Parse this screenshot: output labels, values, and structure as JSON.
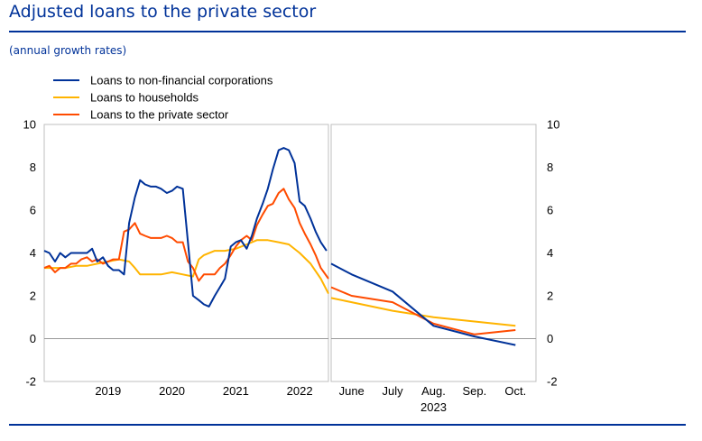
{
  "header": {
    "title": "Adjusted loans to the private sector",
    "subtitle": "(annual growth rates)"
  },
  "colors": {
    "nfc": "#003299",
    "households": "#ffb400",
    "private": "#ff4b00",
    "frame": "#bfbfbf",
    "zero": "#999999"
  },
  "chart_data": {
    "type": "line",
    "legend": [
      {
        "name": "Loans to non-financial corporations",
        "color": "#003299"
      },
      {
        "name": "Loans to households",
        "color": "#ffb400"
      },
      {
        "name": "Loans to the private sector",
        "color": "#ff4b00"
      }
    ],
    "legend_position": "top-left",
    "ylim": [
      -2,
      10
    ],
    "yticks": [
      "10",
      "8",
      "6",
      "4",
      "2",
      "0",
      "-2"
    ],
    "grid": false,
    "left_panel": {
      "x_tick_labels": [
        "2019",
        "2020",
        "2021",
        "2022"
      ],
      "x_range": [
        2018.5,
        2022.95
      ],
      "series": [
        {
          "name": "Loans to non-financial corporations",
          "color": "#003299",
          "x": [
            2018.5,
            2018.58,
            2018.67,
            2018.75,
            2018.83,
            2018.92,
            2019.0,
            2019.08,
            2019.17,
            2019.25,
            2019.33,
            2019.42,
            2019.5,
            2019.58,
            2019.67,
            2019.75,
            2019.83,
            2019.92,
            2020.0,
            2020.08,
            2020.17,
            2020.25,
            2020.33,
            2020.42,
            2020.5,
            2020.58,
            2020.67,
            2020.75,
            2020.83,
            2020.92,
            2021.0,
            2021.08,
            2021.17,
            2021.25,
            2021.33,
            2021.42,
            2021.5,
            2021.58,
            2021.67,
            2021.75,
            2021.83,
            2021.92,
            2022.0,
            2022.08,
            2022.17,
            2022.25,
            2022.33,
            2022.42,
            2022.5,
            2022.58,
            2022.67,
            2022.75,
            2022.83,
            2022.92
          ],
          "values": [
            4.1,
            4.0,
            3.6,
            4.0,
            3.8,
            4.0,
            4.0,
            4.0,
            4.0,
            4.2,
            3.6,
            3.8,
            3.4,
            3.2,
            3.2,
            3.0,
            5.4,
            6.6,
            7.4,
            7.2,
            7.1,
            7.1,
            7.0,
            6.8,
            6.9,
            7.1,
            7.0,
            4.5,
            2.0,
            1.8,
            1.6,
            1.5,
            2.0,
            2.4,
            2.8,
            4.3,
            4.5,
            4.6,
            4.2,
            4.8,
            5.6,
            6.3,
            7.0,
            7.9,
            8.8,
            8.9,
            8.8,
            8.2,
            6.4,
            6.2,
            5.6,
            5.0,
            4.5,
            4.1
          ]
        },
        {
          "name": "Loans to households",
          "color": "#ffb400",
          "x": [
            2018.5,
            2018.67,
            2018.83,
            2019.0,
            2019.17,
            2019.33,
            2019.5,
            2019.67,
            2019.83,
            2019.92,
            2020.0,
            2020.17,
            2020.33,
            2020.5,
            2020.67,
            2020.83,
            2020.92,
            2021.0,
            2021.17,
            2021.33,
            2021.5,
            2021.67,
            2021.83,
            2022.0,
            2022.17,
            2022.33,
            2022.5,
            2022.67,
            2022.83,
            2022.95
          ],
          "values": [
            3.3,
            3.3,
            3.3,
            3.4,
            3.4,
            3.5,
            3.6,
            3.7,
            3.6,
            3.3,
            3.0,
            3.0,
            3.0,
            3.1,
            3.0,
            2.9,
            3.7,
            3.9,
            4.1,
            4.1,
            4.2,
            4.4,
            4.6,
            4.6,
            4.5,
            4.4,
            4.0,
            3.5,
            2.8,
            2.1
          ]
        },
        {
          "name": "Loans to the private sector",
          "color": "#ff4b00",
          "x": [
            2018.5,
            2018.58,
            2018.67,
            2018.75,
            2018.83,
            2018.92,
            2019.0,
            2019.08,
            2019.17,
            2019.25,
            2019.33,
            2019.42,
            2019.5,
            2019.58,
            2019.67,
            2019.75,
            2019.83,
            2019.92,
            2020.0,
            2020.08,
            2020.17,
            2020.25,
            2020.33,
            2020.42,
            2020.5,
            2020.58,
            2020.67,
            2020.75,
            2020.83,
            2020.92,
            2021.0,
            2021.08,
            2021.17,
            2021.25,
            2021.33,
            2021.42,
            2021.5,
            2021.58,
            2021.67,
            2021.75,
            2021.83,
            2021.92,
            2022.0,
            2022.08,
            2022.17,
            2022.25,
            2022.33,
            2022.42,
            2022.5,
            2022.58,
            2022.67,
            2022.75,
            2022.83,
            2022.95
          ],
          "values": [
            3.3,
            3.4,
            3.1,
            3.3,
            3.3,
            3.5,
            3.5,
            3.7,
            3.8,
            3.6,
            3.7,
            3.5,
            3.6,
            3.7,
            3.7,
            5.0,
            5.1,
            5.4,
            4.9,
            4.8,
            4.7,
            4.7,
            4.7,
            4.8,
            4.7,
            4.5,
            4.5,
            3.6,
            3.3,
            2.7,
            3.0,
            3.0,
            3.0,
            3.3,
            3.5,
            3.9,
            4.3,
            4.6,
            4.8,
            4.6,
            5.3,
            5.8,
            6.2,
            6.3,
            6.8,
            7.0,
            6.5,
            6.1,
            5.4,
            4.9,
            4.4,
            3.9,
            3.3,
            2.8
          ]
        }
      ]
    },
    "right_panel": {
      "categories": [
        "June",
        "July",
        "Aug.",
        "Sep.",
        "Oct."
      ],
      "year_label": "2023",
      "x": [
        -0.5,
        0.0,
        1.0,
        2.0,
        3.0,
        4.0
      ],
      "series": [
        {
          "name": "Loans to non-financial corporations",
          "color": "#003299",
          "values": [
            3.5,
            3.0,
            2.2,
            0.6,
            0.1,
            -0.3
          ]
        },
        {
          "name": "Loans to households",
          "color": "#ffb400",
          "values": [
            1.9,
            1.7,
            1.3,
            1.0,
            0.8,
            0.6
          ]
        },
        {
          "name": "Loans to the private sector",
          "color": "#ff4b00",
          "values": [
            2.4,
            2.0,
            1.7,
            0.7,
            0.2,
            0.4
          ]
        }
      ]
    }
  }
}
